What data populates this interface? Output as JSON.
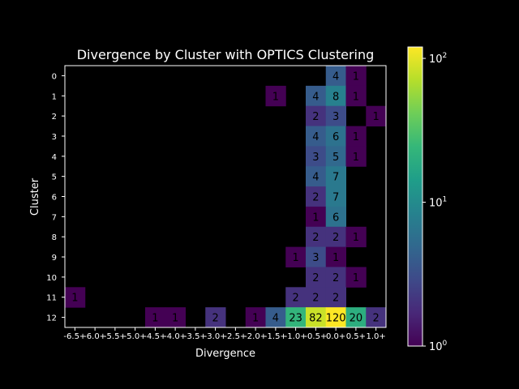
{
  "chart_data": {
    "type": "heatmap",
    "title": "Divergence by Cluster with OPTICS Clustering",
    "xlabel": "Divergence",
    "ylabel": "Cluster",
    "x_categories": [
      "-6.5+",
      "-6.0+",
      "-5.5+",
      "-5.0+",
      "-4.5+",
      "-4.0+",
      "-3.5+",
      "-3.0+",
      "-2.5+",
      "-2.0+",
      "-1.5+",
      "-1.0+",
      "-0.5+",
      "0.0+",
      "0.5+",
      "1.0+"
    ],
    "y_categories": [
      "0",
      "1",
      "2",
      "3",
      "4",
      "5",
      "6",
      "7",
      "8",
      "9",
      "10",
      "11",
      "12"
    ],
    "cells": [
      {
        "cluster": "0",
        "divergence": "0.0+",
        "count": 4
      },
      {
        "cluster": "0",
        "divergence": "0.5+",
        "count": 1
      },
      {
        "cluster": "1",
        "divergence": "-1.5+",
        "count": 1
      },
      {
        "cluster": "1",
        "divergence": "-0.5+",
        "count": 4
      },
      {
        "cluster": "1",
        "divergence": "0.0+",
        "count": 8
      },
      {
        "cluster": "1",
        "divergence": "0.5+",
        "count": 1
      },
      {
        "cluster": "2",
        "divergence": "-0.5+",
        "count": 2
      },
      {
        "cluster": "2",
        "divergence": "0.0+",
        "count": 3
      },
      {
        "cluster": "2",
        "divergence": "1.0+",
        "count": 1
      },
      {
        "cluster": "3",
        "divergence": "-0.5+",
        "count": 4
      },
      {
        "cluster": "3",
        "divergence": "0.0+",
        "count": 6
      },
      {
        "cluster": "3",
        "divergence": "0.5+",
        "count": 1
      },
      {
        "cluster": "4",
        "divergence": "-0.5+",
        "count": 3
      },
      {
        "cluster": "4",
        "divergence": "0.0+",
        "count": 5
      },
      {
        "cluster": "4",
        "divergence": "0.5+",
        "count": 1
      },
      {
        "cluster": "5",
        "divergence": "-0.5+",
        "count": 4
      },
      {
        "cluster": "5",
        "divergence": "0.0+",
        "count": 7
      },
      {
        "cluster": "6",
        "divergence": "-0.5+",
        "count": 2
      },
      {
        "cluster": "6",
        "divergence": "0.0+",
        "count": 7
      },
      {
        "cluster": "7",
        "divergence": "-0.5+",
        "count": 1
      },
      {
        "cluster": "7",
        "divergence": "0.0+",
        "count": 6
      },
      {
        "cluster": "8",
        "divergence": "-0.5+",
        "count": 2
      },
      {
        "cluster": "8",
        "divergence": "0.0+",
        "count": 2
      },
      {
        "cluster": "8",
        "divergence": "0.5+",
        "count": 1
      },
      {
        "cluster": "9",
        "divergence": "-1.0+",
        "count": 1
      },
      {
        "cluster": "9",
        "divergence": "-0.5+",
        "count": 3
      },
      {
        "cluster": "9",
        "divergence": "0.0+",
        "count": 1
      },
      {
        "cluster": "10",
        "divergence": "-0.5+",
        "count": 2
      },
      {
        "cluster": "10",
        "divergence": "0.0+",
        "count": 2
      },
      {
        "cluster": "10",
        "divergence": "0.5+",
        "count": 1
      },
      {
        "cluster": "11",
        "divergence": "-6.5+",
        "count": 1
      },
      {
        "cluster": "11",
        "divergence": "-1.0+",
        "count": 2
      },
      {
        "cluster": "11",
        "divergence": "-0.5+",
        "count": 2
      },
      {
        "cluster": "11",
        "divergence": "0.0+",
        "count": 2
      },
      {
        "cluster": "12",
        "divergence": "-4.5+",
        "count": 1
      },
      {
        "cluster": "12",
        "divergence": "-4.0+",
        "count": 1
      },
      {
        "cluster": "12",
        "divergence": "-3.0+",
        "count": 2
      },
      {
        "cluster": "12",
        "divergence": "-2.0+",
        "count": 1
      },
      {
        "cluster": "12",
        "divergence": "-1.5+",
        "count": 4
      },
      {
        "cluster": "12",
        "divergence": "-1.0+",
        "count": 23
      },
      {
        "cluster": "12",
        "divergence": "-0.5+",
        "count": 82
      },
      {
        "cluster": "12",
        "divergence": "0.0+",
        "count": 120
      },
      {
        "cluster": "12",
        "divergence": "0.5+",
        "count": 20
      },
      {
        "cluster": "12",
        "divergence": "1.0+",
        "count": 2
      }
    ],
    "colorbar": {
      "scale": "log",
      "colormap": "viridis",
      "range": [
        1,
        120
      ],
      "ticks": [
        {
          "value": 1,
          "base": "10",
          "exp": "0"
        },
        {
          "value": 10,
          "base": "10",
          "exp": "1"
        },
        {
          "value": 100,
          "base": "10",
          "exp": "2"
        }
      ]
    },
    "background": "#000000",
    "grid": false
  }
}
